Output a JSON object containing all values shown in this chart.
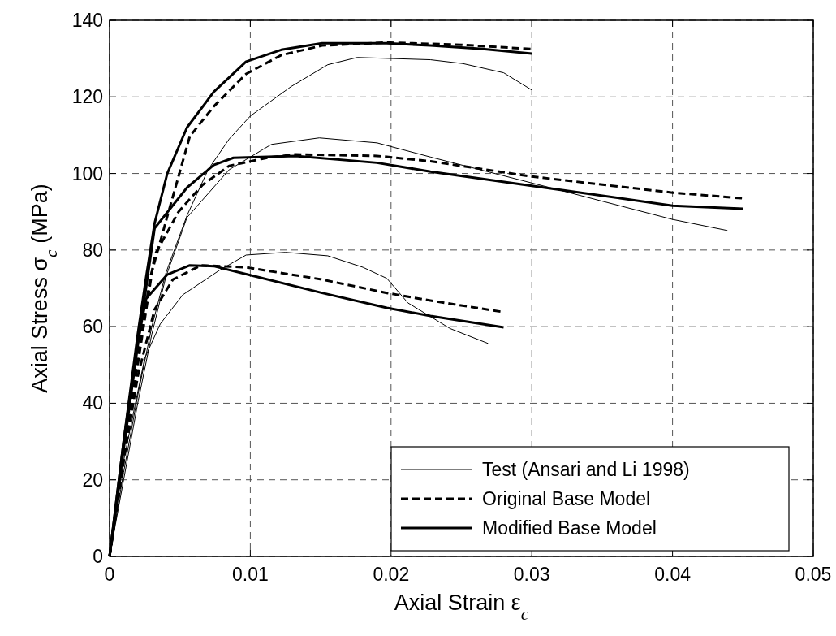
{
  "chart_data": {
    "type": "line",
    "xlabel": "Axial Strain ε$_{c}$",
    "ylabel": "Axial Stress σ$_{c}$ (MPa)",
    "xlim": [
      0,
      0.05
    ],
    "xticks": [
      0,
      0.01,
      0.02,
      0.03,
      0.04,
      0.05
    ],
    "ylim": [
      0,
      140
    ],
    "yticks": [
      0,
      20,
      40,
      60,
      80,
      100,
      120,
      140
    ],
    "grid": true,
    "legend": "bottom right",
    "marker": "none",
    "series": [
      {
        "name": "Test (Ansari and Li 1998)",
        "color": "#000000",
        "line_style": "solid",
        "x": [
          0,
          0.001,
          0.002,
          0.003,
          0.004,
          0.0055,
          0.007,
          0.0085,
          0.01,
          0.0129,
          0.0155,
          0.0176,
          0.0228,
          0.0251,
          0.028,
          0.03
        ],
        "values": [
          0,
          22,
          42,
          60,
          74,
          89,
          101,
          109,
          115,
          122.7,
          128.4,
          130.3,
          129.7,
          128.7,
          126.3,
          121.8
        ]
      },
      {
        "color": "#000000",
        "line_style": "solid",
        "x": [
          0,
          0.001,
          0.002,
          0.003,
          0.004,
          0.0055,
          0.0085,
          0.0115,
          0.0149,
          0.019,
          0.0228,
          0.0313,
          0.04,
          0.0439
        ],
        "values": [
          0,
          20,
          40,
          58,
          73,
          88.5,
          101,
          107.6,
          109.3,
          108,
          104.3,
          96.3,
          88,
          85.1
        ]
      },
      {
        "color": "#000000",
        "line_style": "solid",
        "x": [
          0,
          0.001,
          0.0025,
          0.0036,
          0.0052,
          0.0078,
          0.0097,
          0.0125,
          0.0155,
          0.018,
          0.0197,
          0.0212,
          0.0242,
          0.0269
        ],
        "values": [
          0,
          25,
          51.8,
          60.7,
          68.3,
          74.7,
          78.7,
          79.4,
          78.5,
          75.5,
          72.6,
          66.2,
          59.5,
          55.6
        ]
      },
      {
        "name": "Original Base Model",
        "color": "#000000",
        "line_style": "dashed",
        "x": [
          0,
          0.001,
          0.002,
          0.0029,
          0.0043,
          0.0057,
          0.0074,
          0.0097,
          0.0122,
          0.0151,
          0.0197,
          0.025,
          0.03
        ],
        "values": [
          0,
          27,
          52,
          73,
          91.4,
          109.7,
          117.5,
          126,
          130.9,
          133.4,
          134.2,
          133.6,
          132.5
        ]
      },
      {
        "color": "#000000",
        "line_style": "dashed",
        "x": [
          0,
          0.001,
          0.002,
          0.0032,
          0.0049,
          0.0066,
          0.0085,
          0.0112,
          0.0132,
          0.019,
          0.0228,
          0.03,
          0.04,
          0.045
        ],
        "values": [
          0,
          25,
          50,
          78.7,
          90,
          97,
          102,
          104.1,
          105,
          104.6,
          103.2,
          99.2,
          95,
          93.5
        ]
      },
      {
        "color": "#000000",
        "line_style": "dashed",
        "x": [
          0,
          0.001,
          0.002,
          0.0032,
          0.0045,
          0.0065,
          0.0097,
          0.0151,
          0.0197,
          0.0228,
          0.028
        ],
        "values": [
          0,
          25,
          47,
          64.5,
          72.3,
          76,
          75.5,
          72.3,
          68.8,
          66.8,
          63.8
        ]
      },
      {
        "name": "Modified Base Model",
        "color": "#000000",
        "line_style": "solid",
        "x": [
          0,
          0.001,
          0.002,
          0.0026,
          0.0032,
          0.0041,
          0.0055,
          0.0074,
          0.0097,
          0.0122,
          0.0151,
          0.0197,
          0.0228,
          0.0265,
          0.03
        ],
        "values": [
          0,
          30,
          58,
          73,
          87,
          100,
          112,
          121.3,
          129.2,
          132.3,
          134,
          134,
          133.4,
          132.5,
          131.3
        ]
      },
      {
        "color": "#000000",
        "line_style": "solid",
        "x": [
          0,
          0.001,
          0.002,
          0.0032,
          0.0055,
          0.0074,
          0.0088,
          0.0132,
          0.019,
          0.0228,
          0.03,
          0.04,
          0.045
        ],
        "values": [
          0,
          28,
          55,
          85.7,
          96.3,
          102.2,
          104.1,
          104.6,
          102.8,
          100.5,
          96.8,
          91.6,
          90.8
        ]
      },
      {
        "color": "#000000",
        "line_style": "solid",
        "x": [
          0,
          0.001,
          0.002,
          0.0026,
          0.0041,
          0.0057,
          0.0074,
          0.0097,
          0.0151,
          0.0197,
          0.0228,
          0.028
        ],
        "values": [
          0,
          30,
          56,
          67.3,
          73.6,
          76,
          75.8,
          73.7,
          68.8,
          64.9,
          62.8,
          59.8
        ]
      }
    ]
  }
}
